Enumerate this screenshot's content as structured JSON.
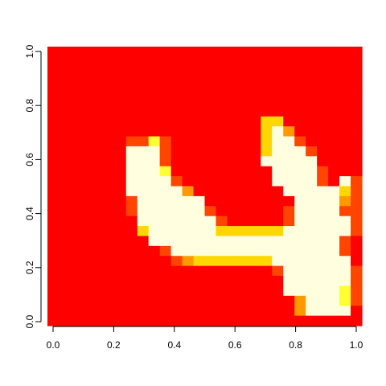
{
  "chart_data": {
    "type": "heatmap",
    "title": "",
    "xlabel": "",
    "ylabel": "",
    "xlim": [
      0,
      1
    ],
    "ylim": [
      0,
      1
    ],
    "x_ticks": [
      "0.0",
      "0.2",
      "0.4",
      "0.6",
      "0.8",
      "1.0"
    ],
    "y_ticks": [
      "0.0",
      "0.2",
      "0.4",
      "0.6",
      "0.8",
      "1.0"
    ],
    "grid": false,
    "legend": "none",
    "color_scale": "heat",
    "palette": [
      "#FF0000",
      "#FF4500",
      "#FF9900",
      "#FFD700",
      "#FFFF33",
      "#FFFFE0"
    ],
    "grid_size": [
      28,
      28
    ],
    "rows_top_to_bottom": [
      "0000000000000000000000000000",
      "0000000000000000000000000000",
      "0000000000000000000000000000",
      "0000000000000000000000000000",
      "0000000000000000000000000000",
      "0000000000000000000000000000",
      "0000000000000000000000000000",
      "0000000000000000000330000000",
      "0000000000000000000352000000",
      "0000000114100000000355100000",
      "0000000555100000000355510000",
      "0000000555100000000555550000",
      "0000000555400000000055551000",
      "0000000555510000000055551051",
      "0000000555552000000005555531",
      "0000000155555500000000555521",
      "0000000155555510000001555511",
      "0000000055555551000001555551",
      "0000000035555553333335555551",
      "0000000005555555555555555510",
      "0000000000155555555555555510",
      "0000000000012333333355555550",
      "0000000000000000000015555551",
      "0000000000000000000005555551",
      "0000000000000000000005555541",
      "0000000000000000000000255541",
      "0000000000000000000000255550",
      "0000000000000000000000000000"
    ]
  }
}
